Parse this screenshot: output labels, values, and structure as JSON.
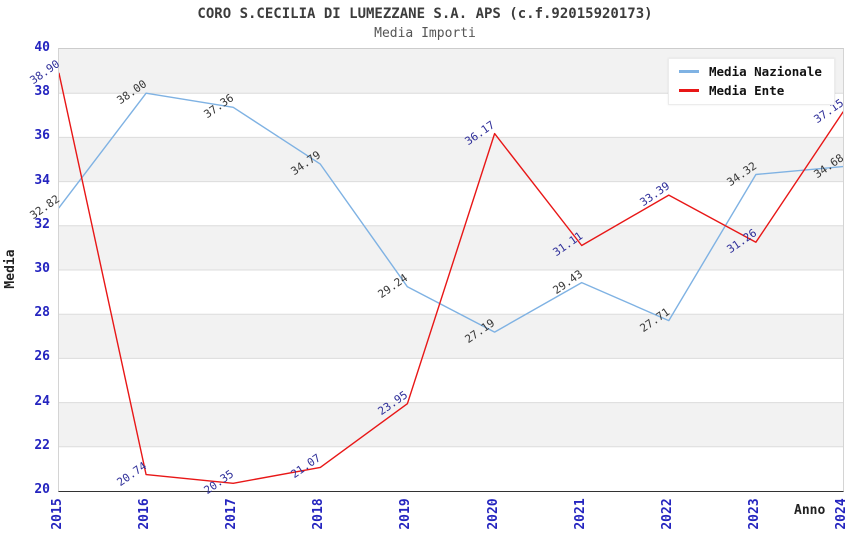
{
  "header": {
    "title": "CORO S.CECILIA DI LUMEZZANE S.A. APS (c.f.92015920173)",
    "subtitle": "Media Importi"
  },
  "axes": {
    "y_label": "Media",
    "x_label": "Anno",
    "y_ticks": [
      "40",
      "38",
      "36",
      "34",
      "32",
      "30",
      "28",
      "26",
      "24",
      "22",
      "20"
    ],
    "x_ticks": [
      "2015",
      "2016",
      "2017",
      "2018",
      "2019",
      "2020",
      "2021",
      "2022",
      "2023",
      "2024"
    ]
  },
  "legend": {
    "items": [
      {
        "label": "Media Nazionale",
        "color": "#7fb2e3"
      },
      {
        "label": "Media Ente",
        "color": "#e81717"
      }
    ]
  },
  "colors": {
    "tick_label": "#2424bf",
    "band_gray": "#f2f2f2",
    "gridline": "#dcdcdc",
    "axis_line": "#333333",
    "nazionale_line": "#7fb2e3",
    "ente_line": "#e81717",
    "nazionale_point_label": "#363636",
    "ente_point_label": "#2e2e99"
  },
  "chart_data": {
    "type": "line",
    "title": "CORO S.CECILIA DI LUMEZZANE S.A. APS (c.f.92015920173)",
    "subtitle": "Media Importi",
    "xlabel": "Anno",
    "ylabel": "Media",
    "x": [
      2015,
      2016,
      2017,
      2018,
      2019,
      2020,
      2021,
      2022,
      2023,
      2024
    ],
    "ylim": [
      20,
      40
    ],
    "y_tick_step": 2,
    "grid": "horizontal-bands",
    "legend_position": "top-right",
    "series": [
      {
        "name": "Media Nazionale",
        "color": "#7fb2e3",
        "label_color": "#363636",
        "values": [
          32.82,
          38.0,
          37.36,
          34.79,
          29.24,
          27.19,
          29.43,
          27.71,
          34.32,
          34.68
        ],
        "labels": [
          "32.82",
          "38.00",
          "37.36",
          "34.79",
          "29.24",
          "27.19",
          "29.43",
          "27.71",
          "34.32",
          "34.68"
        ]
      },
      {
        "name": "Media Ente",
        "color": "#e81717",
        "label_color": "#2e2e99",
        "values": [
          38.9,
          20.74,
          20.35,
          21.07,
          23.95,
          36.17,
          31.11,
          33.39,
          31.26,
          37.15
        ],
        "labels": [
          "38.90",
          "20.74",
          "20.35",
          "21.07",
          "23.95",
          "36.17",
          "31.11",
          "33.39",
          "31.26",
          "37.15"
        ]
      }
    ]
  }
}
